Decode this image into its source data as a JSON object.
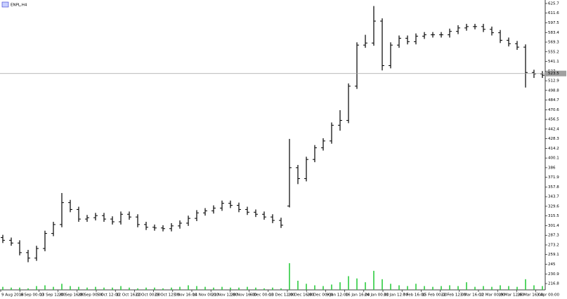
{
  "chart_data": {
    "type": "ohlc",
    "title": "ENPL,H4",
    "open": [
      284,
      280,
      276,
      262,
      254,
      268,
      290,
      303,
      335,
      325,
      311,
      313,
      316,
      311,
      307,
      318,
      314,
      303,
      299,
      298,
      297,
      301,
      305,
      312,
      320,
      323,
      327,
      334,
      331,
      325,
      321,
      318,
      314,
      309,
      330,
      386,
      370,
      398,
      415,
      425,
      448,
      455,
      505,
      565,
      568,
      600,
      535,
      565,
      575,
      570,
      578,
      580,
      580,
      580,
      585,
      590,
      592,
      592,
      588,
      583,
      572,
      567,
      562,
      525,
      523
    ],
    "high": [
      288,
      284,
      280,
      266,
      272,
      294,
      307,
      349,
      339,
      329,
      317,
      320,
      320,
      315,
      322,
      322,
      318,
      307,
      303,
      302,
      305,
      309,
      316,
      324,
      327,
      331,
      338,
      338,
      335,
      329,
      325,
      322,
      318,
      313,
      428,
      390,
      402,
      419,
      429,
      452,
      470,
      509,
      569,
      580,
      622,
      604,
      569,
      579,
      579,
      582,
      584,
      584,
      584,
      589,
      594,
      596,
      596,
      596,
      592,
      587,
      576,
      571,
      566,
      529,
      527
    ],
    "low": [
      276,
      272,
      258,
      248,
      250,
      264,
      286,
      299,
      321,
      307,
      307,
      309,
      307,
      303,
      303,
      310,
      299,
      295,
      294,
      293,
      293,
      297,
      301,
      308,
      316,
      319,
      323,
      327,
      321,
      317,
      314,
      310,
      305,
      298,
      328,
      362,
      366,
      394,
      411,
      421,
      440,
      451,
      501,
      561,
      564,
      528,
      531,
      561,
      566,
      566,
      574,
      576,
      576,
      576,
      581,
      586,
      588,
      584,
      579,
      568,
      563,
      558,
      503,
      517,
      517
    ],
    "close": [
      280,
      276,
      262,
      254,
      268,
      290,
      303,
      335,
      325,
      311,
      313,
      316,
      311,
      307,
      318,
      314,
      303,
      299,
      298,
      297,
      301,
      305,
      312,
      320,
      323,
      327,
      334,
      331,
      325,
      321,
      318,
      314,
      309,
      302,
      386,
      370,
      398,
      415,
      425,
      448,
      455,
      505,
      565,
      568,
      600,
      535,
      565,
      575,
      570,
      578,
      580,
      580,
      580,
      585,
      590,
      592,
      592,
      588,
      583,
      572,
      567,
      562,
      525,
      523,
      521
    ],
    "volume": [
      4,
      3,
      3,
      2,
      5,
      6,
      4,
      8,
      5,
      4,
      3,
      4,
      3,
      3,
      5,
      3,
      2,
      3,
      3,
      2,
      3,
      4,
      6,
      5,
      4,
      3,
      4,
      3,
      3,
      4,
      3,
      2,
      3,
      2,
      35,
      12,
      8,
      6,
      5,
      7,
      10,
      18,
      15,
      10,
      25,
      14,
      8,
      6,
      5,
      8,
      5,
      4,
      5,
      6,
      5,
      10,
      4,
      5,
      4,
      6,
      5,
      4,
      14,
      6,
      5
    ],
    "bar_color": "#000000",
    "volume_color": "#2ecc40",
    "current_price": 523.5,
    "ylim": [
      207.6,
      630.8
    ],
    "yticks": [
      625.7,
      611.6,
      597.5,
      583.4,
      569.3,
      555.2,
      541.1,
      527.0,
      512.9,
      498.8,
      484.7,
      470.6,
      456.5,
      442.4,
      428.3,
      414.2,
      400.1,
      386.0,
      371.9,
      357.8,
      343.7,
      329.6,
      315.5,
      301.4,
      287.3,
      273.2,
      259.1,
      245.0,
      230.9,
      216.8
    ],
    "xticks": [
      "9 Aug 2018",
      "6 Sep 00:00",
      "13 Sep 12:00",
      "20 Sep 16:00",
      "28 Sep 00:00",
      "5 Oct 12:00",
      "12 Oct 16:00",
      "22 Oct 00:00",
      "29 Oct 12:00",
      "5 Nov 16:00",
      "14 Nov 00:00",
      "21 Nov 12:00",
      "28 Nov 16:00",
      "6 Dec 00:00",
      "13 Dec 12:00",
      "20 Dec 16:00",
      "28 Dec 00:00",
      "9 Jan 12:00",
      "16 Jan 16:00",
      "24 Jan 00:00",
      "31 Jan 12:00",
      "7 Feb 16:00",
      "15 Feb 00:00",
      "22 Feb 12:00",
      "3 Mar 16:00",
      "12 Mar 00:00",
      "19 Mar 12:00",
      "26 Mar 16:00",
      "3 Apr 00:00"
    ]
  }
}
